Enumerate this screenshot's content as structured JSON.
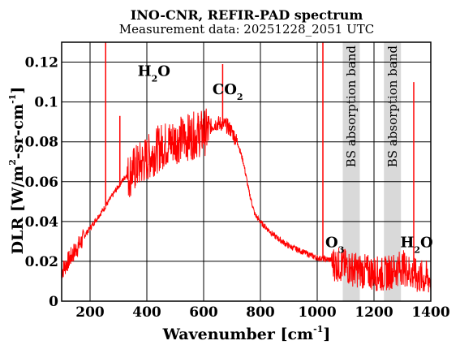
{
  "chart_data": {
    "type": "line",
    "title": "INO-CNR, REFIR-PAD spectrum",
    "subtitle": "Measurement data: 20251228_2051 UTC",
    "xlabel": {
      "main": "Wavenumber [cm",
      "sup": "-1",
      "tail": "]"
    },
    "ylabel": {
      "p1": "DLR [W/m",
      "s1": "2",
      "p2": "-sr-cm",
      "s2": "-1",
      "p3": "]"
    },
    "xlim": [
      100,
      1400
    ],
    "ylim": [
      0,
      0.13
    ],
    "x_ticks": [
      200,
      400,
      600,
      800,
      1000,
      1200,
      1400
    ],
    "y_ticks": [
      0,
      0.02,
      0.04,
      0.06,
      0.08,
      0.1,
      0.12
    ],
    "grid": true,
    "series_color": "#ff0000",
    "band_color": "#d9d9d9",
    "series": [
      {
        "x": [
          100,
          150,
          200,
          250,
          300,
          350,
          400,
          450,
          500,
          550,
          600,
          620,
          640,
          660,
          680,
          700,
          720,
          740,
          760,
          780,
          800,
          850,
          900,
          950,
          1000,
          1050,
          1080,
          1150,
          1200,
          1230,
          1300,
          1350,
          1400
        ],
        "y": [
          0.016,
          0.027,
          0.037,
          0.047,
          0.058,
          0.068,
          0.074,
          0.08,
          0.083,
          0.085,
          0.087,
          0.088,
          0.09,
          0.09,
          0.089,
          0.086,
          0.08,
          0.07,
          0.055,
          0.044,
          0.04,
          0.033,
          0.028,
          0.025,
          0.022,
          0.021,
          0.02,
          0.017,
          0.016,
          0.015,
          0.019,
          0.014,
          0.013
        ]
      }
    ],
    "spikes": [
      {
        "x": 255,
        "y": 0.13
      },
      {
        "x": 305,
        "y": 0.093
      },
      {
        "x": 667,
        "y": 0.119
      },
      {
        "x": 1020,
        "y": 0.13
      },
      {
        "x": 1340,
        "y": 0.11
      }
    ],
    "bands": [
      {
        "x0": 1090,
        "x1": 1150,
        "label": "BS absorption band"
      },
      {
        "x0": 1235,
        "x1": 1295,
        "label": "BS absorption band"
      }
    ],
    "annotations": [
      {
        "id": "h2o-left",
        "x": 425,
        "y": 0.113,
        "text": "H",
        "sub": "2",
        "tail": "O"
      },
      {
        "id": "co2",
        "x": 685,
        "y": 0.104,
        "text": "CO",
        "sub": "2",
        "tail": ""
      },
      {
        "id": "o3",
        "x": 1062,
        "y": 0.027,
        "text": "O",
        "sub": "3",
        "tail": ""
      },
      {
        "id": "h2o-right",
        "x": 1350,
        "y": 0.027,
        "text": "H",
        "sub": "2",
        "tail": "O"
      }
    ]
  }
}
